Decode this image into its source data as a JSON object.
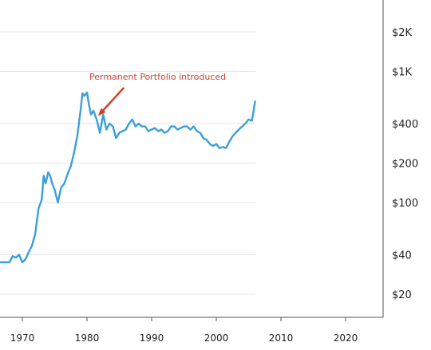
{
  "chart_data": {
    "type": "line",
    "title": "",
    "xlabel": "",
    "ylabel": "",
    "scale_y": "log",
    "xlim": [
      1965,
      2025
    ],
    "ylim": [
      13,
      3000
    ],
    "grid": "horizontal",
    "legend": "none",
    "x_ticks": [
      1970,
      1980,
      1990,
      2000,
      2010,
      2020
    ],
    "x_tick_labels": [
      "1970",
      "1980",
      "1990",
      "2000",
      "2010",
      "2020"
    ],
    "y_ticks": [
      20,
      40,
      100,
      200,
      400,
      1000,
      2000
    ],
    "y_tick_labels": [
      "$20",
      "$40",
      "$100",
      "$200",
      "$400",
      "$1K",
      "$2K"
    ],
    "series_color": "#3aa0da",
    "annotation": {
      "text": "Permanent Portfolio introduced",
      "color": "#d2402a",
      "x": 1982,
      "y": 480
    },
    "series": [
      {
        "x": [
          1965,
          1967,
          1968,
          1968.5,
          1969,
          1969.5,
          1970,
          1970.5,
          1971,
          1971.5,
          1972,
          1972.5,
          1973,
          1973.3,
          1973.6,
          1974,
          1974.3,
          1974.6,
          1975,
          1975.5,
          1976,
          1976.5,
          1977,
          1977.5,
          1978,
          1978.5,
          1979,
          1979.3,
          1979.6,
          1980,
          1980.3,
          1980.6,
          1981,
          1981.5,
          1982,
          1982.5,
          1983,
          1983.5,
          1984,
          1984.5,
          1985,
          1985.5,
          1986,
          1986.5,
          1987,
          1987.5,
          1988,
          1988.5,
          1989,
          1989.5,
          1990,
          1990.5,
          1991,
          1991.5,
          1992,
          1992.5,
          1993,
          1993.5,
          1994,
          1994.5,
          1995,
          1995.5,
          1996,
          1996.5,
          1997,
          1997.5,
          1998,
          1998.5,
          1999,
          1999.5,
          2000,
          2000.5,
          2001,
          2001.5,
          2002,
          2002.5,
          2003,
          2003.5,
          2004,
          2004.5,
          2005,
          2005.5,
          2006
        ],
        "y": [
          35,
          35,
          35,
          39,
          38,
          40,
          35,
          37,
          42,
          47,
          58,
          90,
          105,
          160,
          140,
          170,
          160,
          140,
          125,
          100,
          130,
          140,
          165,
          190,
          240,
          320,
          500,
          680,
          650,
          690,
          560,
          470,
          500,
          430,
          340,
          470,
          360,
          400,
          380,
          310,
          340,
          350,
          360,
          400,
          430,
          380,
          400,
          380,
          380,
          350,
          360,
          370,
          350,
          360,
          340,
          350,
          380,
          380,
          360,
          370,
          380,
          380,
          360,
          380,
          350,
          340,
          310,
          300,
          280,
          270,
          280,
          260,
          265,
          260,
          290,
          320,
          340,
          360,
          380,
          400,
          430,
          420,
          590
        ]
      }
    ]
  }
}
